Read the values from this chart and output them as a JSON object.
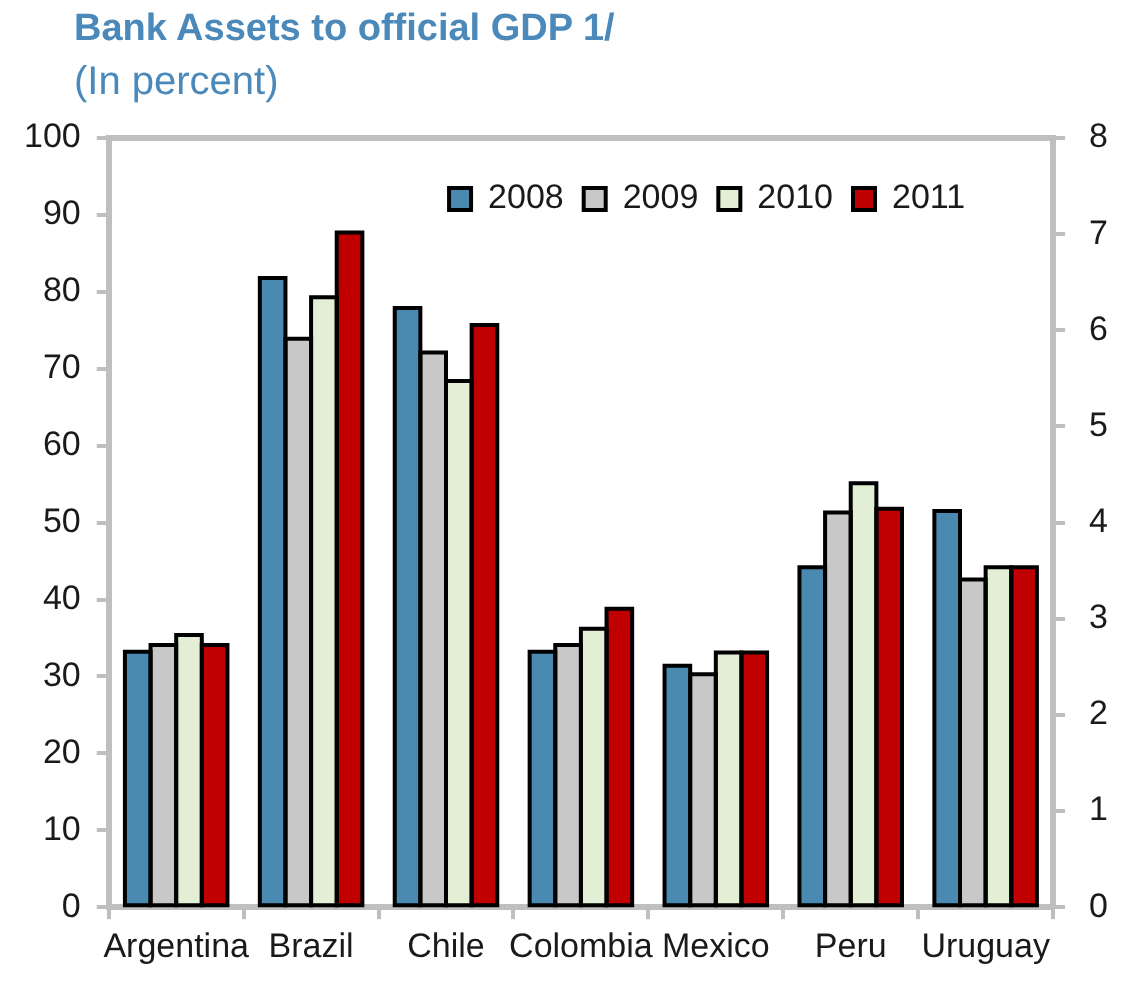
{
  "chart_data": {
    "type": "bar",
    "title": "Bank Assets to official GDP 1/",
    "subtitle": "(In percent)",
    "categories": [
      "Argentina",
      "Brazil",
      "Chile",
      "Colombia",
      "Mexico",
      "Peru",
      "Uruguay"
    ],
    "series": [
      {
        "name": "2008",
        "color": "#4a8ab0",
        "values": [
          33.2,
          81.8,
          77.9,
          33.2,
          31.4,
          44.2,
          51.5
        ]
      },
      {
        "name": "2009",
        "color": "#c8c8c8",
        "values": [
          34.1,
          73.9,
          72.1,
          34.1,
          30.3,
          51.3,
          42.6
        ]
      },
      {
        "name": "2010",
        "color": "#e2efd4",
        "values": [
          35.4,
          79.3,
          68.4,
          36.2,
          33.1,
          55.1,
          44.2
        ]
      },
      {
        "name": "2011",
        "color": "#c00000",
        "values": [
          34.1,
          87.7,
          75.7,
          38.8,
          33.1,
          51.8,
          44.2
        ]
      }
    ],
    "ylim": [
      0,
      100
    ],
    "yticks": [
      0,
      10,
      20,
      30,
      40,
      50,
      60,
      70,
      80,
      90,
      100
    ],
    "y2lim": [
      0,
      8
    ],
    "y2ticks": [
      0,
      1,
      2,
      3,
      4,
      5,
      6,
      7,
      8
    ],
    "grid": false,
    "legend": "top right"
  }
}
